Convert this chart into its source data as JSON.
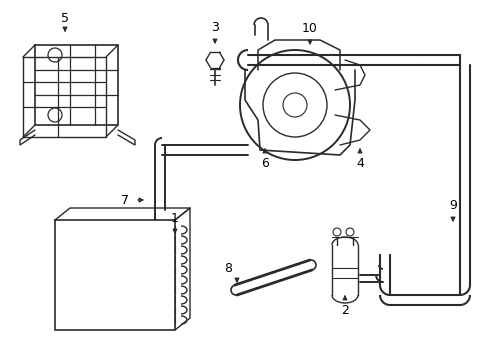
{
  "bg_color": "#ffffff",
  "line_color": "#2a2a2a",
  "label_color": "#000000",
  "lw": 1.2,
  "figsize": [
    4.89,
    3.6
  ],
  "dpi": 100
}
